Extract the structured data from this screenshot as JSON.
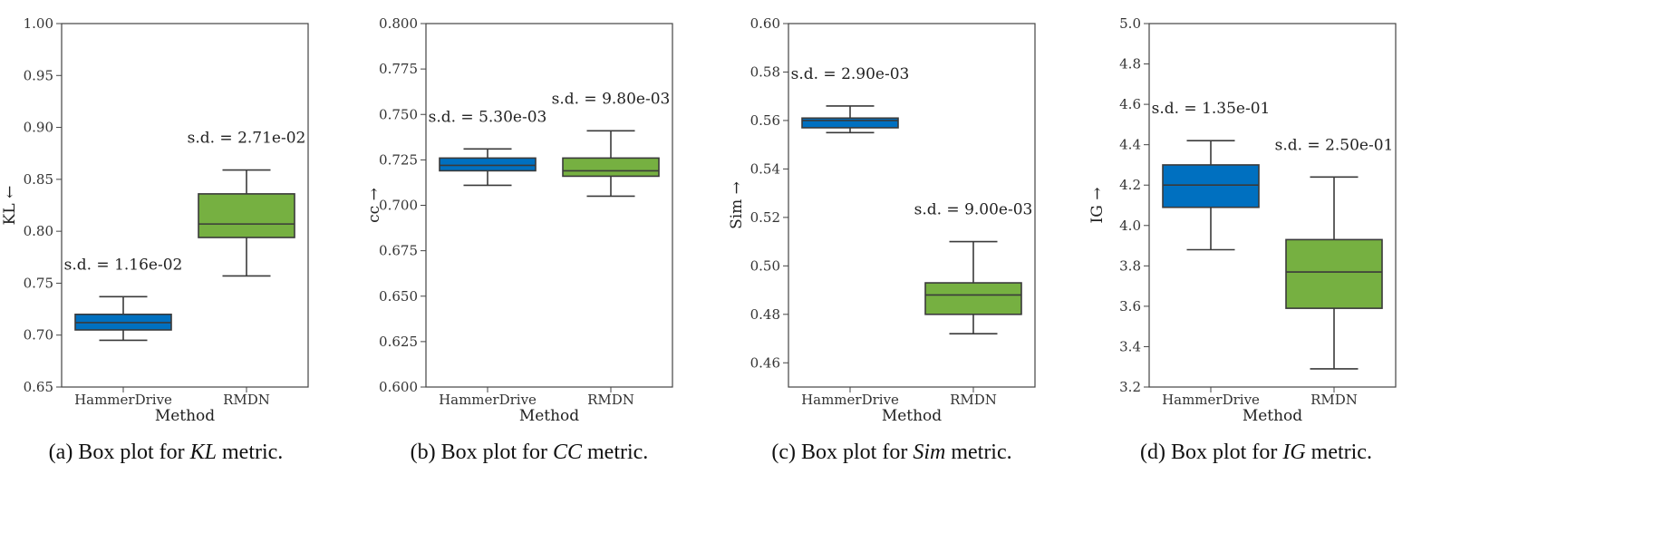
{
  "colors": {
    "hammerdrive": "#0070c0",
    "rmdn": "#76b041",
    "line": "#3a3a3a",
    "frame": "#444444"
  },
  "chart_data": [
    {
      "type": "box",
      "caption_prefix": "(a) Box plot for ",
      "caption_var": "KL",
      "caption_suffix": " metric.",
      "xlabel": "Method",
      "ylabel": "KL ←",
      "ylim": [
        0.65,
        1.0
      ],
      "yticks": [
        "0.65",
        "0.70",
        "0.75",
        "0.80",
        "0.85",
        "0.90",
        "0.95",
        "1.00"
      ],
      "categories": [
        "HammerDrive",
        "RMDN"
      ],
      "boxes": [
        {
          "name": "HammerDrive",
          "whisker_low": 0.695,
          "q1": 0.705,
          "median": 0.712,
          "q3": 0.72,
          "whisker_high": 0.737,
          "sd_label": "s.d. = 1.16e-02"
        },
        {
          "name": "RMDN",
          "whisker_low": 0.757,
          "q1": 0.794,
          "median": 0.807,
          "q3": 0.836,
          "whisker_high": 0.859,
          "sd_label": "s.d. = 2.71e-02"
        }
      ]
    },
    {
      "type": "box",
      "caption_prefix": "(b) Box plot for ",
      "caption_var": "CC",
      "caption_suffix": " metric.",
      "xlabel": "Method",
      "ylabel": "cc →",
      "ylim": [
        0.6,
        0.8
      ],
      "yticks": [
        "0.600",
        "0.625",
        "0.650",
        "0.675",
        "0.700",
        "0.725",
        "0.750",
        "0.775",
        "0.800"
      ],
      "categories": [
        "HammerDrive",
        "RMDN"
      ],
      "boxes": [
        {
          "name": "HammerDrive",
          "whisker_low": 0.711,
          "q1": 0.719,
          "median": 0.722,
          "q3": 0.726,
          "whisker_high": 0.731,
          "sd_label": "s.d. = 5.30e-03"
        },
        {
          "name": "RMDN",
          "whisker_low": 0.705,
          "q1": 0.716,
          "median": 0.719,
          "q3": 0.726,
          "whisker_high": 0.741,
          "sd_label": "s.d. = 9.80e-03"
        }
      ]
    },
    {
      "type": "box",
      "caption_prefix": "(c) Box plot for ",
      "caption_var": "Sim",
      "caption_suffix": " metric.",
      "xlabel": "Method",
      "ylabel": "Sim →",
      "ylim": [
        0.45,
        0.6
      ],
      "yticks": [
        "0.46",
        "0.48",
        "0.50",
        "0.52",
        "0.54",
        "0.56",
        "0.58",
        "0.60"
      ],
      "categories": [
        "HammerDrive",
        "RMDN"
      ],
      "boxes": [
        {
          "name": "HammerDrive",
          "whisker_low": 0.555,
          "q1": 0.557,
          "median": 0.56,
          "q3": 0.561,
          "whisker_high": 0.566,
          "sd_label": "s.d. = 2.90e-03"
        },
        {
          "name": "RMDN",
          "whisker_low": 0.472,
          "q1": 0.48,
          "median": 0.488,
          "q3": 0.493,
          "whisker_high": 0.51,
          "sd_label": "s.d. = 9.00e-03"
        }
      ]
    },
    {
      "type": "box",
      "caption_prefix": "(d) Box plot for ",
      "caption_var": "IG",
      "caption_suffix": " metric.",
      "xlabel": "Method",
      "ylabel": "IG →",
      "ylim": [
        3.2,
        5.0
      ],
      "yticks": [
        "3.2",
        "3.4",
        "3.6",
        "3.8",
        "4.0",
        "4.2",
        "4.4",
        "4.6",
        "4.8",
        "5.0"
      ],
      "categories": [
        "HammerDrive",
        "RMDN"
      ],
      "boxes": [
        {
          "name": "HammerDrive",
          "whisker_low": 3.88,
          "q1": 4.09,
          "median": 4.2,
          "q3": 4.3,
          "whisker_high": 4.42,
          "sd_label": "s.d. = 1.35e-01"
        },
        {
          "name": "RMDN",
          "whisker_low": 3.29,
          "q1": 3.59,
          "median": 3.77,
          "q3": 3.93,
          "whisker_high": 4.24,
          "sd_label": "s.d. = 2.50e-01"
        }
      ]
    }
  ]
}
